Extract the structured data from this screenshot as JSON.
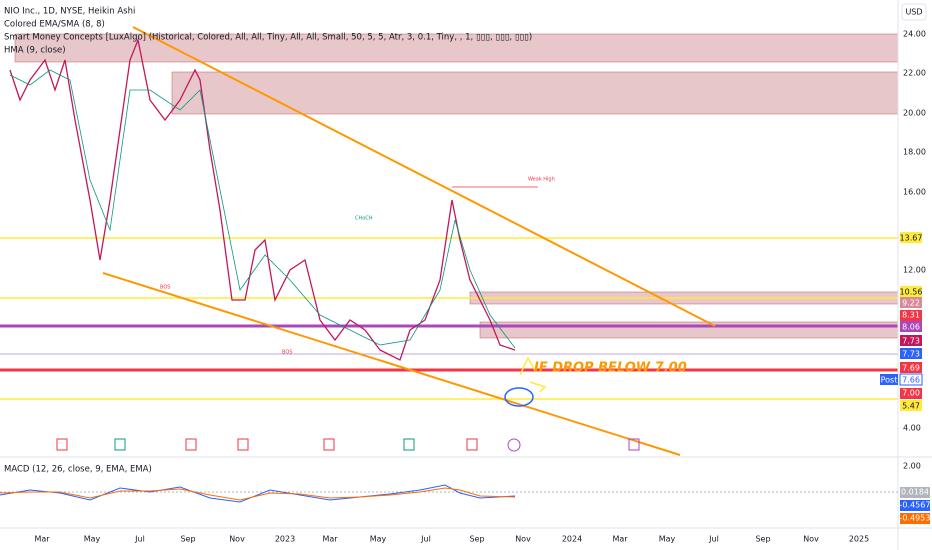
{
  "header": {
    "symbol": "NIO Inc., 1D, NYSE, Heikin Ashi",
    "indicators": [
      "Colored EMA/SMA (8, 8)",
      "Smart Money Concepts [LuxAlgo] (Historical, Colored, All, All, Tiny, All, All, Small, 50, 5, 5, Atr, 3, 0.1, Tiny, , 1, ▯▯▯, ▯▯▯, ▯▯▯)",
      "HMA (9, close)"
    ],
    "currency": "USD"
  },
  "price_axis": [
    "24.00",
    "22.00",
    "20.00",
    "18.00",
    "16.00",
    "12.00",
    "4.00"
  ],
  "price_tags": [
    "13.67",
    "10.56",
    "9.22",
    "8.31",
    "8.06",
    "7.73",
    "7.73",
    "7.69",
    "7.66",
    "7.00",
    "5.47"
  ],
  "post_label": "Post",
  "annotation": "IF DROP BELOW 7.00",
  "chart_labels": [
    "CHoCH",
    "Weak High",
    "BOS",
    "BOS"
  ],
  "macd": {
    "title": "MACD (12, 26, close, 9, EMA, EMA)",
    "axis": "2.00",
    "tags": [
      "0.0184",
      "-0.4567",
      "-0.4953"
    ]
  },
  "time_axis": [
    "Mar",
    "May",
    "Jul",
    "Sep",
    "Nov",
    "2023",
    "Mar",
    "May",
    "Jul",
    "Sep",
    "Nov",
    "2024",
    "Mar",
    "May",
    "Jul",
    "Sep",
    "Nov",
    "2025"
  ]
}
